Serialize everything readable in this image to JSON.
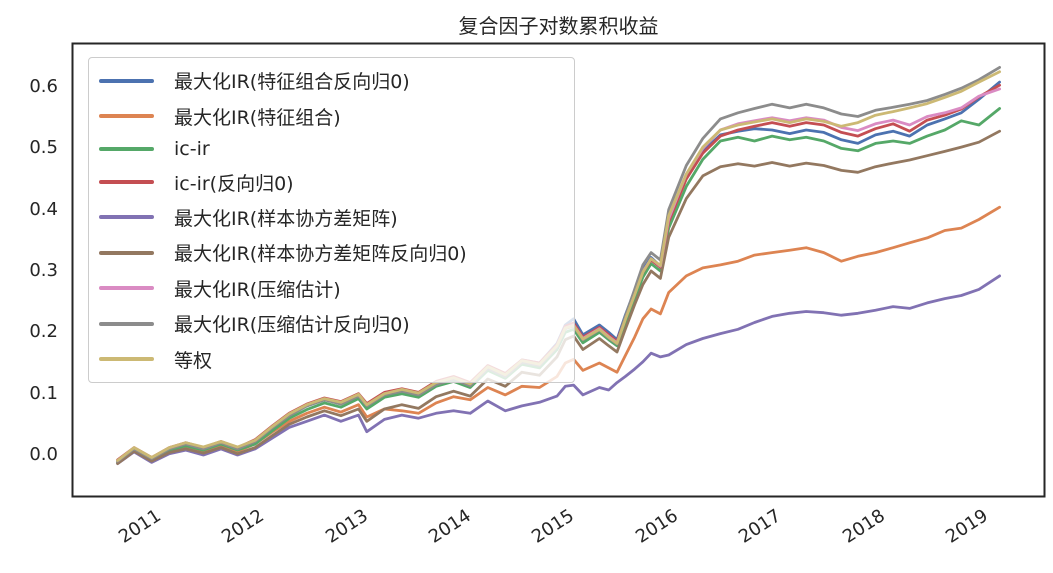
{
  "chart_data": {
    "type": "line",
    "title": "复合因子对数累积收益",
    "xlabel": "",
    "ylabel": "",
    "grid": false,
    "legend_position": "upper-left",
    "xlim": [
      2010.23,
      2019.63
    ],
    "ylim": [
      -0.068,
      0.672
    ],
    "x_ticks": [
      2011,
      2012,
      2013,
      2014,
      2015,
      2016,
      2017,
      2018,
      2019
    ],
    "x_tick_labels": [
      "2011",
      "2012",
      "2013",
      "2014",
      "2015",
      "2016",
      "2017",
      "2018",
      "2019"
    ],
    "y_ticks": [
      0.0,
      0.1,
      0.2,
      0.3,
      0.4,
      0.5,
      0.6
    ],
    "y_tick_labels": [
      "0.0",
      "0.1",
      "0.2",
      "0.3",
      "0.4",
      "0.5",
      "0.6"
    ],
    "x": [
      2010.67,
      2010.83,
      2011.0,
      2011.17,
      2011.33,
      2011.5,
      2011.67,
      2011.83,
      2012.0,
      2012.17,
      2012.33,
      2012.5,
      2012.67,
      2012.83,
      2013.0,
      2013.08,
      2013.25,
      2013.42,
      2013.58,
      2013.75,
      2013.92,
      2014.08,
      2014.25,
      2014.42,
      2014.58,
      2014.75,
      2014.92,
      2015.0,
      2015.08,
      2015.17,
      2015.33,
      2015.42,
      2015.5,
      2015.58,
      2015.67,
      2015.75,
      2015.83,
      2015.92,
      2016.0,
      2016.17,
      2016.33,
      2016.5,
      2016.67,
      2016.83,
      2017.0,
      2017.17,
      2017.33,
      2017.5,
      2017.67,
      2017.83,
      2018.0,
      2018.17,
      2018.33,
      2018.5,
      2018.67,
      2018.83,
      2019.0,
      2019.2
    ],
    "series": [
      {
        "name": "最大化IR(特征组合反向归0)",
        "color": "#4C72B0",
        "values": [
          -0.01,
          0.01,
          -0.006,
          0.01,
          0.018,
          0.01,
          0.02,
          0.01,
          0.022,
          0.045,
          0.065,
          0.08,
          0.09,
          0.085,
          0.098,
          0.082,
          0.1,
          0.106,
          0.1,
          0.118,
          0.126,
          0.116,
          0.145,
          0.132,
          0.155,
          0.15,
          0.182,
          0.212,
          0.222,
          0.196,
          0.212,
          0.2,
          0.188,
          0.228,
          0.268,
          0.302,
          0.322,
          0.308,
          0.385,
          0.455,
          0.495,
          0.522,
          0.528,
          0.532,
          0.53,
          0.524,
          0.53,
          0.526,
          0.514,
          0.508,
          0.522,
          0.528,
          0.52,
          0.538,
          0.548,
          0.558,
          0.58,
          0.608
        ]
      },
      {
        "name": "最大化IR(特征组合)",
        "color": "#DD8452",
        "values": [
          -0.012,
          0.008,
          -0.01,
          0.006,
          0.014,
          0.006,
          0.016,
          0.006,
          0.018,
          0.038,
          0.055,
          0.068,
          0.078,
          0.07,
          0.082,
          0.062,
          0.075,
          0.072,
          0.068,
          0.085,
          0.095,
          0.09,
          0.11,
          0.098,
          0.112,
          0.11,
          0.128,
          0.15,
          0.156,
          0.138,
          0.15,
          0.142,
          0.135,
          0.162,
          0.192,
          0.222,
          0.238,
          0.23,
          0.265,
          0.292,
          0.305,
          0.31,
          0.316,
          0.326,
          0.33,
          0.334,
          0.338,
          0.33,
          0.316,
          0.324,
          0.33,
          0.338,
          0.346,
          0.354,
          0.366,
          0.37,
          0.384,
          0.404
        ]
      },
      {
        "name": "ic-ir",
        "color": "#55A868",
        "values": [
          -0.012,
          0.008,
          -0.008,
          0.008,
          0.015,
          0.008,
          0.018,
          0.008,
          0.018,
          0.04,
          0.06,
          0.074,
          0.085,
          0.078,
          0.092,
          0.075,
          0.094,
          0.1,
          0.094,
          0.112,
          0.12,
          0.11,
          0.138,
          0.125,
          0.148,
          0.142,
          0.172,
          0.2,
          0.205,
          0.183,
          0.2,
          0.188,
          0.178,
          0.215,
          0.255,
          0.29,
          0.312,
          0.3,
          0.37,
          0.438,
          0.482,
          0.512,
          0.518,
          0.512,
          0.52,
          0.514,
          0.518,
          0.512,
          0.5,
          0.496,
          0.508,
          0.512,
          0.508,
          0.52,
          0.53,
          0.545,
          0.538,
          0.565
        ]
      },
      {
        "name": "ic-ir(反向归0)",
        "color": "#C44E52",
        "values": [
          -0.008,
          0.012,
          -0.004,
          0.012,
          0.02,
          0.012,
          0.022,
          0.012,
          0.025,
          0.048,
          0.068,
          0.083,
          0.093,
          0.087,
          0.1,
          0.084,
          0.102,
          0.108,
          0.102,
          0.12,
          0.128,
          0.118,
          0.146,
          0.133,
          0.155,
          0.15,
          0.18,
          0.21,
          0.215,
          0.192,
          0.208,
          0.196,
          0.185,
          0.224,
          0.264,
          0.298,
          0.318,
          0.306,
          0.38,
          0.45,
          0.492,
          0.52,
          0.53,
          0.536,
          0.542,
          0.536,
          0.542,
          0.538,
          0.526,
          0.52,
          0.532,
          0.54,
          0.528,
          0.546,
          0.554,
          0.564,
          0.584,
          0.603
        ]
      },
      {
        "name": "最大化IR(样本协方差矩阵)",
        "color": "#8172B3",
        "values": [
          -0.014,
          0.005,
          -0.012,
          0.002,
          0.008,
          0.0,
          0.01,
          0.0,
          0.01,
          0.028,
          0.045,
          0.055,
          0.065,
          0.055,
          0.065,
          0.038,
          0.058,
          0.065,
          0.06,
          0.068,
          0.072,
          0.068,
          0.088,
          0.072,
          0.08,
          0.086,
          0.096,
          0.112,
          0.114,
          0.098,
          0.11,
          0.106,
          0.118,
          0.128,
          0.14,
          0.152,
          0.166,
          0.16,
          0.163,
          0.18,
          0.19,
          0.198,
          0.205,
          0.216,
          0.226,
          0.231,
          0.234,
          0.232,
          0.228,
          0.231,
          0.236,
          0.242,
          0.239,
          0.248,
          0.255,
          0.26,
          0.27,
          0.292
        ]
      },
      {
        "name": "最大化IR(样本协方差矩阵反向归0)",
        "color": "#937860",
        "values": [
          -0.014,
          0.006,
          -0.01,
          0.004,
          0.01,
          0.003,
          0.012,
          0.002,
          0.012,
          0.032,
          0.05,
          0.062,
          0.072,
          0.064,
          0.075,
          0.055,
          0.075,
          0.082,
          0.076,
          0.095,
          0.104,
          0.096,
          0.124,
          0.112,
          0.135,
          0.13,
          0.16,
          0.188,
          0.194,
          0.172,
          0.19,
          0.178,
          0.168,
          0.205,
          0.245,
          0.278,
          0.3,
          0.288,
          0.355,
          0.418,
          0.455,
          0.47,
          0.475,
          0.471,
          0.477,
          0.471,
          0.476,
          0.472,
          0.464,
          0.461,
          0.47,
          0.476,
          0.481,
          0.488,
          0.495,
          0.502,
          0.51,
          0.528
        ]
      },
      {
        "name": "最大化IR(压缩估计)",
        "color": "#DA8BC3",
        "values": [
          -0.01,
          0.011,
          -0.005,
          0.011,
          0.019,
          0.011,
          0.021,
          0.011,
          0.023,
          0.046,
          0.066,
          0.081,
          0.091,
          0.085,
          0.098,
          0.081,
          0.1,
          0.106,
          0.1,
          0.117,
          0.125,
          0.115,
          0.143,
          0.13,
          0.153,
          0.147,
          0.178,
          0.207,
          0.212,
          0.19,
          0.206,
          0.193,
          0.183,
          0.222,
          0.262,
          0.299,
          0.32,
          0.308,
          0.385,
          0.458,
          0.5,
          0.53,
          0.54,
          0.545,
          0.55,
          0.545,
          0.55,
          0.546,
          0.534,
          0.529,
          0.54,
          0.546,
          0.538,
          0.552,
          0.558,
          0.566,
          0.585,
          0.597
        ]
      },
      {
        "name": "最大化IR(压缩估计反向归0)",
        "color": "#8C8C8C",
        "values": [
          -0.01,
          0.01,
          -0.006,
          0.01,
          0.018,
          0.01,
          0.02,
          0.01,
          0.022,
          0.045,
          0.064,
          0.08,
          0.09,
          0.083,
          0.096,
          0.08,
          0.098,
          0.104,
          0.098,
          0.115,
          0.123,
          0.113,
          0.141,
          0.128,
          0.151,
          0.146,
          0.176,
          0.206,
          0.21,
          0.188,
          0.204,
          0.191,
          0.181,
          0.226,
          0.27,
          0.31,
          0.33,
          0.318,
          0.4,
          0.472,
          0.516,
          0.548,
          0.558,
          0.565,
          0.572,
          0.566,
          0.572,
          0.566,
          0.556,
          0.552,
          0.562,
          0.567,
          0.572,
          0.578,
          0.588,
          0.598,
          0.612,
          0.632
        ]
      },
      {
        "name": "等权",
        "color": "#CCB974",
        "values": [
          -0.009,
          0.012,
          -0.004,
          0.012,
          0.02,
          0.013,
          0.022,
          0.013,
          0.024,
          0.047,
          0.067,
          0.082,
          0.092,
          0.086,
          0.099,
          0.082,
          0.1,
          0.107,
          0.101,
          0.118,
          0.126,
          0.116,
          0.144,
          0.131,
          0.154,
          0.148,
          0.178,
          0.207,
          0.211,
          0.189,
          0.205,
          0.192,
          0.182,
          0.221,
          0.261,
          0.298,
          0.32,
          0.309,
          0.39,
          0.458,
          0.502,
          0.53,
          0.538,
          0.543,
          0.548,
          0.542,
          0.548,
          0.544,
          0.536,
          0.542,
          0.554,
          0.56,
          0.566,
          0.573,
          0.583,
          0.593,
          0.608,
          0.625
        ]
      }
    ]
  },
  "colors": {
    "frame": "#262626",
    "text": "#262626",
    "legend_border": "#cccccc"
  }
}
